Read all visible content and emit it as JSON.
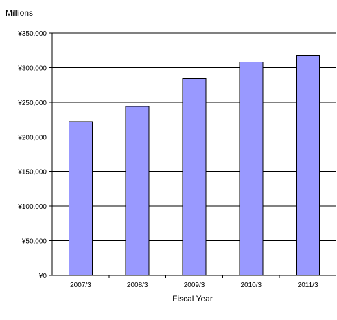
{
  "chart_data": {
    "type": "bar",
    "title": "",
    "units_label": "Millions",
    "xlabel": "Fiscal Year",
    "ylabel": "",
    "categories": [
      "2007/3",
      "2008/3",
      "2009/3",
      "2010/3",
      "2011/3"
    ],
    "series": [
      {
        "values": [
          222000,
          244000,
          284000,
          308000,
          318000
        ],
        "color": "#9999ff"
      }
    ],
    "ylim": [
      0,
      350000
    ],
    "yticks": [
      0,
      50000,
      100000,
      150000,
      200000,
      250000,
      300000,
      350000
    ],
    "ytick_labels": [
      "¥0",
      "¥50,000",
      "¥100,000",
      "¥150,000",
      "¥200,000",
      "¥250,000",
      "¥300,000",
      "¥350,000"
    ],
    "grid": true,
    "legend": "none"
  }
}
